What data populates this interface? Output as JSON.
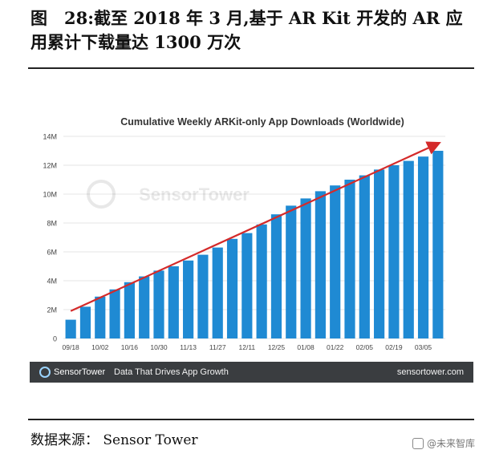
{
  "figure": {
    "title": "图　28:截至 2018 年 3 月,基于 AR Kit 开发的 AR 应用累计下载量达 1300 万次",
    "source": "数据来源：  Sensor Tower",
    "corner_watermark": "@未来智库"
  },
  "footer": {
    "logo_text": "SensorTower",
    "tagline": "Data That Drives App Growth",
    "site": "sensortower.com"
  },
  "colors": {
    "bar": "#1f8ad3",
    "trend": "#d42a2a",
    "grid": "#e6e6e6",
    "footer_bg": "#3a3d40"
  },
  "chart_data": {
    "type": "bar",
    "title": "Cumulative Weekly ARKit-only App Downloads (Worldwide)",
    "watermark": "SensorTower",
    "xlabel": "",
    "ylabel": "",
    "ylim": [
      0,
      14000000
    ],
    "yticks": [
      0,
      2000000,
      4000000,
      6000000,
      8000000,
      10000000,
      12000000,
      14000000
    ],
    "ytick_labels": [
      "0",
      "2M",
      "4M",
      "6M",
      "8M",
      "10M",
      "12M",
      "14M"
    ],
    "grid": true,
    "categories": [
      "09/18",
      "09/25",
      "10/02",
      "10/09",
      "10/16",
      "10/23",
      "10/30",
      "11/06",
      "11/13",
      "11/20",
      "11/27",
      "12/04",
      "12/11",
      "12/18",
      "12/25",
      "01/01",
      "01/08",
      "01/15",
      "01/22",
      "01/29",
      "02/05",
      "02/12",
      "02/19",
      "02/26",
      "03/05",
      "03/12"
    ],
    "xtick_labels": [
      "09/18",
      "",
      "10/02",
      "",
      "10/16",
      "",
      "10/30",
      "",
      "11/13",
      "",
      "11/27",
      "",
      "12/11",
      "",
      "12/25",
      "",
      "01/08",
      "",
      "01/22",
      "",
      "02/05",
      "",
      "02/19",
      "",
      "03/05",
      ""
    ],
    "values": [
      1300000,
      2200000,
      2900000,
      3400000,
      3900000,
      4300000,
      4700000,
      5000000,
      5400000,
      5800000,
      6300000,
      6900000,
      7300000,
      7900000,
      8600000,
      9200000,
      9700000,
      10200000,
      10600000,
      11000000,
      11300000,
      11700000,
      12000000,
      12300000,
      12600000,
      13000000
    ],
    "trendline": {
      "x": [
        "09/18",
        "03/12"
      ],
      "y": [
        1900000,
        13500000
      ]
    }
  }
}
